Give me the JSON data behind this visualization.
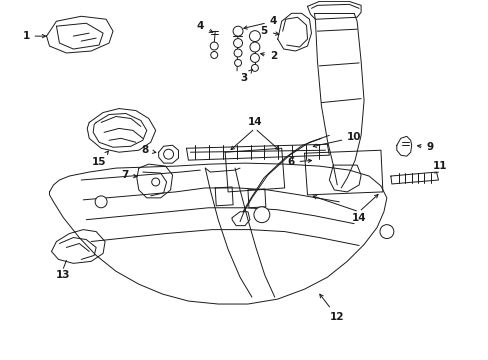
{
  "bg_color": "#ffffff",
  "line_color": "#1a1a1a",
  "fig_width": 4.89,
  "fig_height": 3.6,
  "dpi": 100,
  "label_fontsize": 7.5,
  "lw": 0.7
}
